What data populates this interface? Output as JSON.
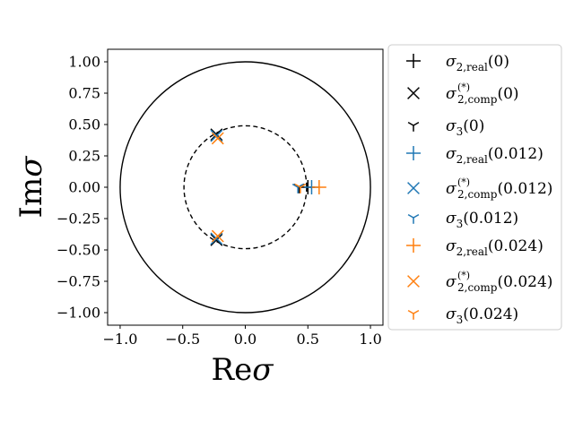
{
  "chart_data": {
    "type": "scatter",
    "xlabel": "Reσ",
    "ylabel": "Imσ",
    "xlim": [
      -1.1,
      1.1
    ],
    "ylim": [
      -1.1,
      1.1
    ],
    "x_ticks": [
      "−1.0",
      "−0.5",
      "0.0",
      "0.5",
      "1.0"
    ],
    "y_ticks": [
      "1.00",
      "0.75",
      "0.50",
      "0.25",
      "0.00",
      "−0.25",
      "−0.50",
      "−0.75",
      "−1.00"
    ],
    "reference_circles": [
      {
        "radius": 1.0,
        "style": "solid"
      },
      {
        "radius": 0.49,
        "style": "dashed"
      }
    ],
    "legend_position": "right-outside",
    "series": [
      {
        "name": "σ_{2,real}(0)",
        "color": "#000000",
        "marker": "plus",
        "points": [
          [
            0.5,
            0.0
          ]
        ]
      },
      {
        "name": "σ^{(*)}_{2,comp}(0)",
        "color": "#000000",
        "marker": "x",
        "points": [
          [
            -0.23,
            0.42
          ],
          [
            -0.23,
            -0.42
          ]
        ]
      },
      {
        "name": "σ_3(0)",
        "color": "#000000",
        "marker": "tri_down",
        "points": [
          [
            0.43,
            0.0
          ]
        ]
      },
      {
        "name": "σ_{2,real}(0.012)",
        "color": "#1f77b4",
        "marker": "plus",
        "points": [
          [
            0.53,
            0.0
          ]
        ]
      },
      {
        "name": "σ^{(*)}_{2,comp}(0.012)",
        "color": "#1f77b4",
        "marker": "x",
        "points": [
          [
            -0.23,
            0.41
          ],
          [
            -0.23,
            -0.41
          ]
        ]
      },
      {
        "name": "σ_3(0.012)",
        "color": "#1f77b4",
        "marker": "tri_down",
        "points": [
          [
            0.42,
            0.0
          ]
        ]
      },
      {
        "name": "σ_{2,real}(0.024)",
        "color": "#ff7f0e",
        "marker": "plus",
        "points": [
          [
            0.59,
            0.0
          ]
        ]
      },
      {
        "name": "σ^{(*)}_{2,comp}(0.024)",
        "color": "#ff7f0e",
        "marker": "x",
        "points": [
          [
            -0.22,
            0.39
          ],
          [
            -0.22,
            -0.39
          ]
        ]
      },
      {
        "name": "σ_3(0.024)",
        "color": "#ff7f0e",
        "marker": "tri_down",
        "points": [
          [
            0.44,
            0.0
          ]
        ]
      }
    ]
  }
}
